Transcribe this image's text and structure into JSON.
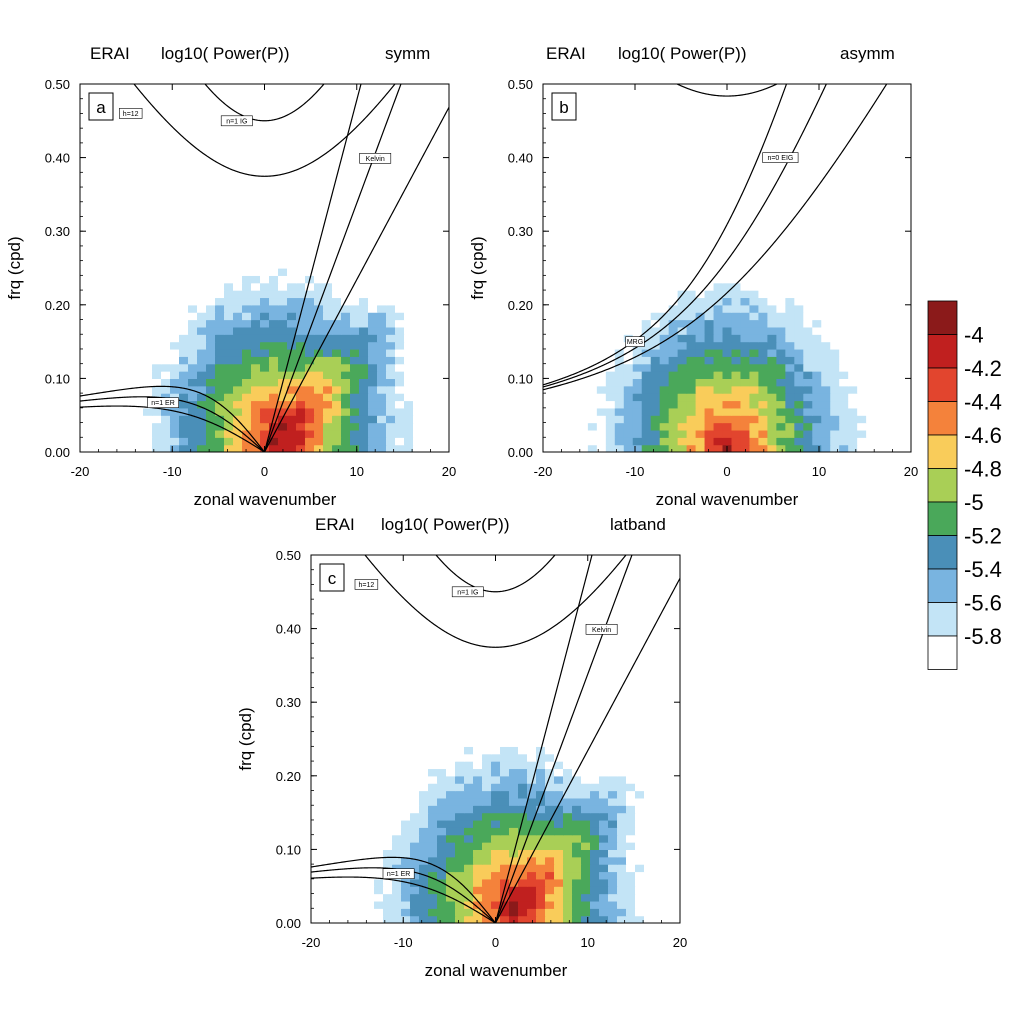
{
  "chart_data": {
    "type": "heatmap",
    "colorbar": {
      "labels": [
        "-4",
        "-4.2",
        "-4.4",
        "-4.6",
        "-4.8",
        "-5",
        "-5.2",
        "-5.4",
        "-5.6",
        "-5.8"
      ],
      "colors": [
        "#8b1a1a",
        "#c0201f",
        "#e2452e",
        "#f4823b",
        "#f9cc5a",
        "#a9cf56",
        "#4aa85a",
        "#4a8fb8",
        "#79b4e0",
        "#c3e4f6",
        "#ffffff"
      ]
    },
    "panels": [
      {
        "letter": "a",
        "dataset": "ERAI",
        "field": "log10( Power(P))",
        "variant": "symm",
        "xlabel": "zonal wavenumber",
        "ylabel": "frq (cpd)",
        "xlim": [
          -20,
          20
        ],
        "ylim": [
          0,
          0.5
        ],
        "xticks": [
          "-20",
          "-10",
          "0",
          "10",
          "20"
        ],
        "yticks": [
          "0.00",
          "0.10",
          "0.20",
          "0.30",
          "0.40",
          "0.50"
        ],
        "peak": {
          "k": 1.5,
          "f": 0.02
        },
        "curves": [
          {
            "kind": "kelvin",
            "h": 12
          },
          {
            "kind": "kelvin",
            "h": 25
          },
          {
            "kind": "kelvin",
            "h": 50
          },
          {
            "kind": "ig",
            "n": 1,
            "h": 12
          },
          {
            "kind": "ig",
            "n": 1,
            "h": 25
          },
          {
            "kind": "er",
            "n": 1,
            "h": 12
          },
          {
            "kind": "er",
            "n": 1,
            "h": 25
          },
          {
            "kind": "er",
            "n": 1,
            "h": 50
          }
        ],
        "labels": [
          {
            "text": "h=12",
            "k": -14.5,
            "f": 0.46
          },
          {
            "text": "n=1 IG",
            "k": -3,
            "f": 0.45
          },
          {
            "text": "Kelvin",
            "k": 12,
            "f": 0.399
          },
          {
            "text": "n=1 ER",
            "k": -11,
            "f": 0.067
          }
        ]
      },
      {
        "letter": "b",
        "dataset": "ERAI",
        "field": "log10( Power(P))",
        "variant": "asymm",
        "xlabel": "zonal wavenumber",
        "ylabel": "frq (cpd)",
        "xlim": [
          -20,
          20
        ],
        "ylim": [
          0,
          0.5
        ],
        "xticks": [
          "-20",
          "-10",
          "0",
          "10",
          "20"
        ],
        "yticks": [
          "0.00",
          "0.10",
          "0.20",
          "0.30",
          "0.40",
          "0.50"
        ],
        "peak": {
          "k": 0,
          "f": 0.01
        },
        "curves": [
          {
            "kind": "eig",
            "h": 12
          },
          {
            "kind": "eig",
            "h": 25
          },
          {
            "kind": "eig",
            "h": 50
          },
          {
            "kind": "mrg",
            "h": 12
          },
          {
            "kind": "mrg",
            "h": 25
          },
          {
            "kind": "mrg",
            "h": 50
          },
          {
            "kind": "ig",
            "n": 2,
            "h": 12
          }
        ],
        "labels": [
          {
            "text": "n=0 EIG",
            "k": 5.8,
            "f": 0.4
          },
          {
            "text": "MRG",
            "k": -10,
            "f": 0.15
          }
        ]
      },
      {
        "letter": "c",
        "dataset": "ERAI",
        "field": "log10( Power(P))",
        "variant": "latband",
        "xlabel": "zonal wavenumber",
        "ylabel": "frq (cpd)",
        "xlim": [
          -20,
          20
        ],
        "ylim": [
          0,
          0.5
        ],
        "xticks": [
          "-20",
          "-10",
          "0",
          "10",
          "20"
        ],
        "yticks": [
          "0.00",
          "0.10",
          "0.20",
          "0.30",
          "0.40",
          "0.50"
        ],
        "peak": {
          "k": 1.5,
          "f": 0.02
        },
        "curves": [
          {
            "kind": "kelvin",
            "h": 12
          },
          {
            "kind": "kelvin",
            "h": 25
          },
          {
            "kind": "kelvin",
            "h": 50
          },
          {
            "kind": "ig",
            "n": 1,
            "h": 12
          },
          {
            "kind": "ig",
            "n": 1,
            "h": 25
          },
          {
            "kind": "er",
            "n": 1,
            "h": 12
          },
          {
            "kind": "er",
            "n": 1,
            "h": 25
          },
          {
            "kind": "er",
            "n": 1,
            "h": 50
          }
        ],
        "labels": [
          {
            "text": "h=12",
            "k": -14,
            "f": 0.46
          },
          {
            "text": "n=1 IG",
            "k": -3,
            "f": 0.45
          },
          {
            "text": "Kelvin",
            "k": 11.5,
            "f": 0.399
          },
          {
            "text": "n=1 ER",
            "k": -10.5,
            "f": 0.067
          }
        ]
      }
    ]
  }
}
